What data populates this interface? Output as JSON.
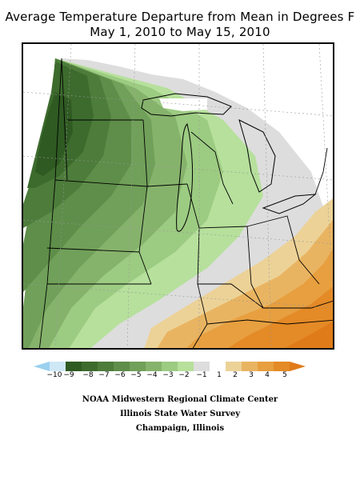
{
  "title": {
    "line1": "Average Temperature Departure from Mean in Degrees F",
    "line2": "May 1, 2010 to May 15, 2010"
  },
  "legend": {
    "labels": [
      "−10",
      "−9",
      "−8",
      "−7",
      "−6",
      "−5",
      "−4",
      "−3",
      "−2",
      "−1",
      "1",
      "2",
      "3",
      "4",
      "5"
    ],
    "colors": {
      "lt_-10": "#9ad0ef",
      "-10": "#cfe8f6",
      "-9": "#2f5a22",
      "-8": "#3d6b2d",
      "-7": "#4d7c3b",
      "-6": "#5e8e49",
      "-5": "#70a059",
      "-4": "#86b36c",
      "-3": "#9ccb82",
      "-2": "#b6e09c",
      "-1": "#dddddd",
      "1": "#ecd297",
      "2": "#e9b461",
      "3": "#e79f3f",
      "4": "#e48a26",
      "5": "#e07b19"
    }
  },
  "credits": {
    "line1": "NOAA Midwestern Regional Climate Center",
    "line2": "Illinois State Water Survey",
    "line3": "Champaign, Illinois"
  }
}
